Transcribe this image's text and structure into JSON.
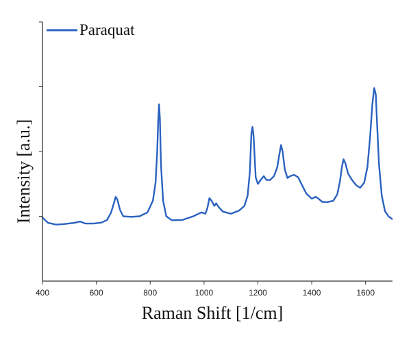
{
  "chart_data": {
    "type": "line",
    "title": "",
    "xlabel": "Raman Shift [1/cm]",
    "ylabel": "Intensity [a.u.]",
    "xlim": [
      400,
      1700
    ],
    "ylim": [
      0,
      1
    ],
    "x_ticks": [
      400,
      600,
      800,
      1000,
      1200,
      1400,
      1600
    ],
    "y_tick_labels_shown": false,
    "grid": false,
    "legend_position": "top-left",
    "series": [
      {
        "name": "Paraquat",
        "color": "#2a62c0",
        "points": [
          [
            400,
            0.245
          ],
          [
            420,
            0.225
          ],
          [
            450,
            0.218
          ],
          [
            480,
            0.22
          ],
          [
            520,
            0.225
          ],
          [
            540,
            0.23
          ],
          [
            560,
            0.222
          ],
          [
            590,
            0.222
          ],
          [
            620,
            0.226
          ],
          [
            640,
            0.236
          ],
          [
            655,
            0.265
          ],
          [
            665,
            0.3
          ],
          [
            672,
            0.325
          ],
          [
            678,
            0.315
          ],
          [
            688,
            0.275
          ],
          [
            700,
            0.25
          ],
          [
            730,
            0.248
          ],
          [
            760,
            0.25
          ],
          [
            790,
            0.265
          ],
          [
            810,
            0.31
          ],
          [
            820,
            0.38
          ],
          [
            826,
            0.5
          ],
          [
            830,
            0.62
          ],
          [
            833,
            0.682
          ],
          [
            836,
            0.63
          ],
          [
            840,
            0.45
          ],
          [
            848,
            0.31
          ],
          [
            860,
            0.25
          ],
          [
            880,
            0.235
          ],
          [
            920,
            0.236
          ],
          [
            960,
            0.25
          ],
          [
            990,
            0.265
          ],
          [
            1005,
            0.26
          ],
          [
            1012,
            0.28
          ],
          [
            1020,
            0.32
          ],
          [
            1028,
            0.31
          ],
          [
            1038,
            0.29
          ],
          [
            1045,
            0.3
          ],
          [
            1055,
            0.285
          ],
          [
            1070,
            0.268
          ],
          [
            1100,
            0.26
          ],
          [
            1130,
            0.272
          ],
          [
            1150,
            0.29
          ],
          [
            1162,
            0.33
          ],
          [
            1170,
            0.42
          ],
          [
            1176,
            0.57
          ],
          [
            1180,
            0.595
          ],
          [
            1184,
            0.56
          ],
          [
            1192,
            0.4
          ],
          [
            1200,
            0.375
          ],
          [
            1210,
            0.39
          ],
          [
            1222,
            0.405
          ],
          [
            1232,
            0.39
          ],
          [
            1245,
            0.39
          ],
          [
            1260,
            0.405
          ],
          [
            1272,
            0.44
          ],
          [
            1280,
            0.49
          ],
          [
            1286,
            0.525
          ],
          [
            1292,
            0.5
          ],
          [
            1300,
            0.43
          ],
          [
            1310,
            0.398
          ],
          [
            1320,
            0.405
          ],
          [
            1335,
            0.41
          ],
          [
            1350,
            0.4
          ],
          [
            1365,
            0.368
          ],
          [
            1380,
            0.338
          ],
          [
            1400,
            0.318
          ],
          [
            1415,
            0.325
          ],
          [
            1425,
            0.318
          ],
          [
            1440,
            0.305
          ],
          [
            1460,
            0.305
          ],
          [
            1480,
            0.31
          ],
          [
            1495,
            0.335
          ],
          [
            1505,
            0.385
          ],
          [
            1512,
            0.44
          ],
          [
            1518,
            0.47
          ],
          [
            1525,
            0.455
          ],
          [
            1535,
            0.415
          ],
          [
            1550,
            0.39
          ],
          [
            1565,
            0.37
          ],
          [
            1580,
            0.36
          ],
          [
            1595,
            0.38
          ],
          [
            1607,
            0.44
          ],
          [
            1617,
            0.56
          ],
          [
            1625,
            0.68
          ],
          [
            1632,
            0.745
          ],
          [
            1638,
            0.72
          ],
          [
            1643,
            0.6
          ],
          [
            1650,
            0.45
          ],
          [
            1660,
            0.33
          ],
          [
            1672,
            0.27
          ],
          [
            1685,
            0.25
          ],
          [
            1698,
            0.24
          ]
        ]
      }
    ]
  }
}
